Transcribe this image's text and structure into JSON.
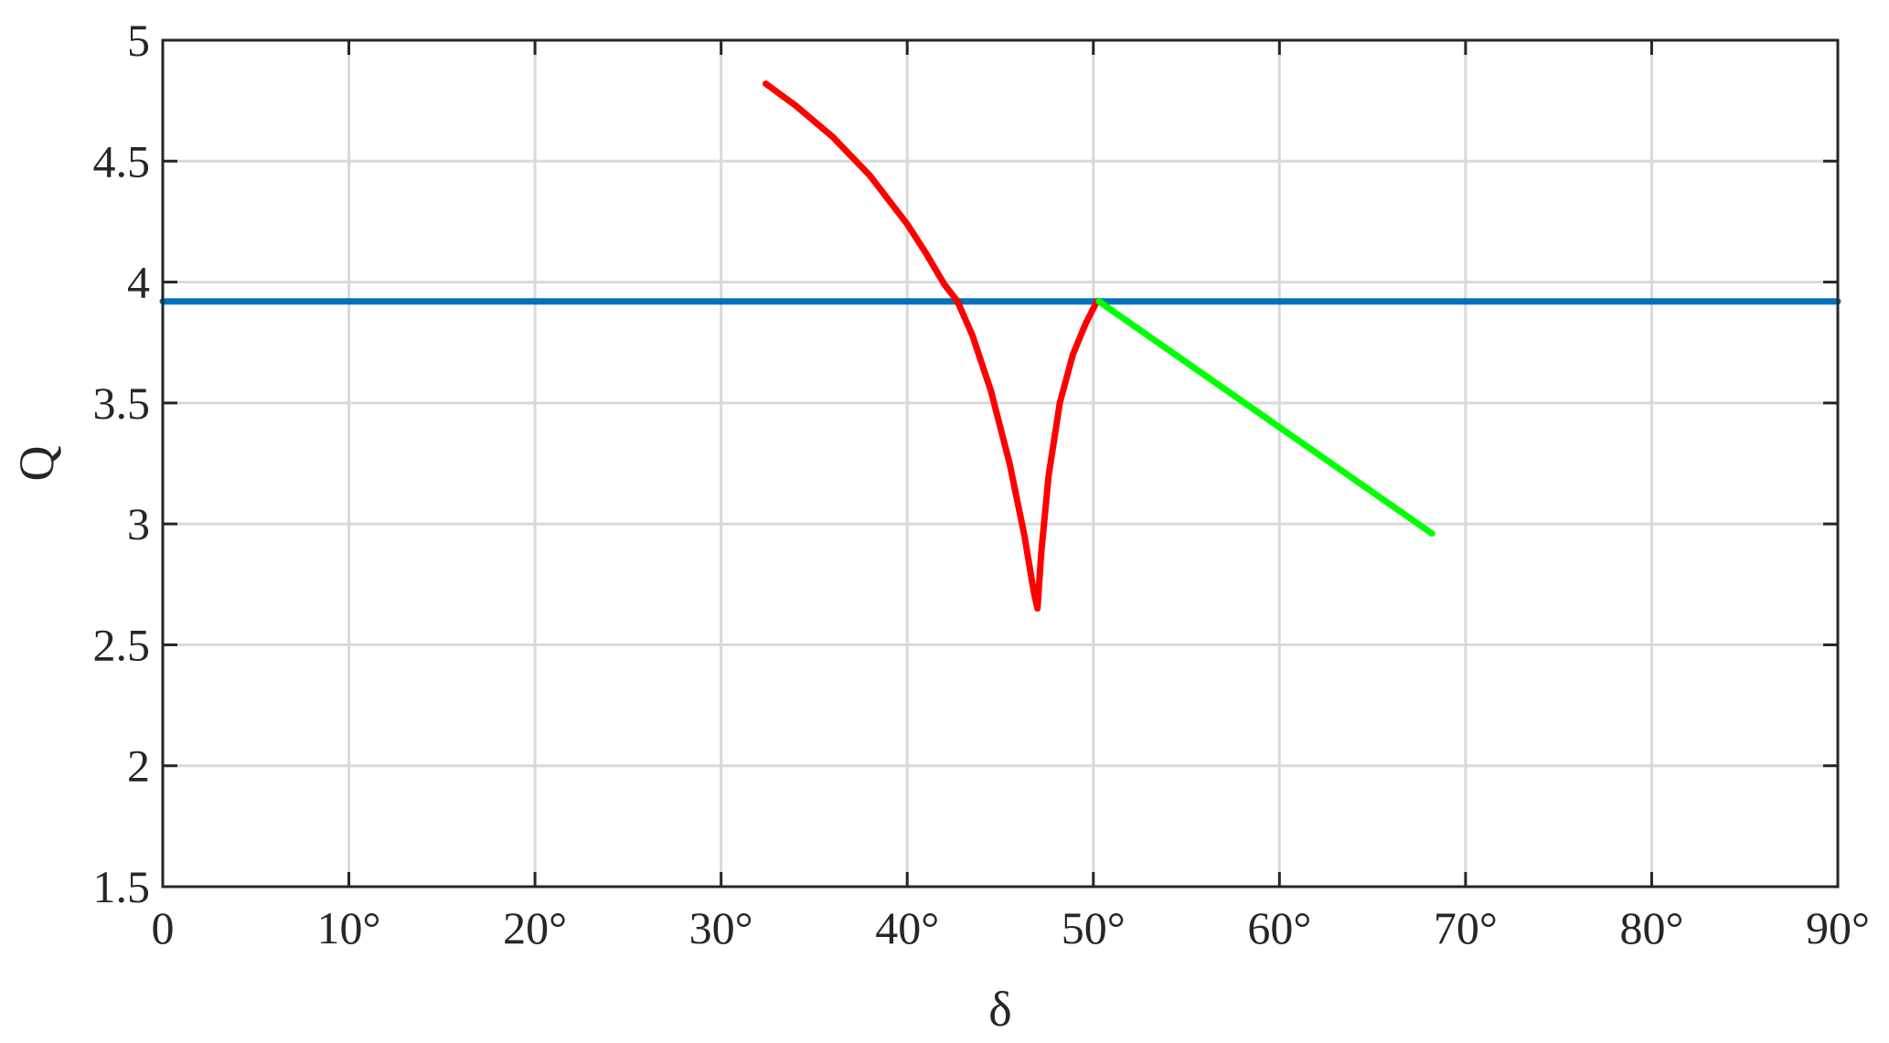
{
  "chart_data": {
    "type": "line",
    "xlabel": "δ",
    "ylabel": "Q",
    "xlim": [
      0,
      90
    ],
    "ylim": [
      1.5,
      5
    ],
    "grid": true,
    "x_ticks": [
      0,
      10,
      20,
      30,
      40,
      50,
      60,
      70,
      80,
      90
    ],
    "x_tick_labels": [
      "0",
      "10°",
      "20°",
      "30°",
      "40°",
      "50°",
      "60°",
      "70°",
      "80°",
      "90°"
    ],
    "y_ticks": [
      1.5,
      2,
      2.5,
      3,
      3.5,
      4,
      4.5,
      5
    ],
    "y_tick_labels": [
      "1.5",
      "2",
      "2.5",
      "3",
      "3.5",
      "4",
      "4.5",
      "5"
    ],
    "series": [
      {
        "color": "#0072BD",
        "x": [
          0,
          90
        ],
        "y": [
          3.92,
          3.92
        ]
      },
      {
        "color": "#FF0000",
        "x": [
          32.4,
          34,
          36,
          38,
          40,
          41,
          42,
          42.7,
          43.5,
          44.5,
          45.5,
          46.3,
          46.8,
          47.0,
          47.2,
          47.6,
          48.2,
          48.9,
          49.6,
          50.2
        ],
        "y": [
          4.82,
          4.73,
          4.6,
          4.44,
          4.24,
          4.12,
          3.99,
          3.92,
          3.78,
          3.55,
          3.25,
          2.95,
          2.72,
          2.65,
          2.88,
          3.2,
          3.5,
          3.7,
          3.83,
          3.92
        ]
      },
      {
        "color": "#00FF00",
        "x": [
          50.3,
          68.2
        ],
        "y": [
          3.92,
          2.96
        ]
      }
    ]
  }
}
